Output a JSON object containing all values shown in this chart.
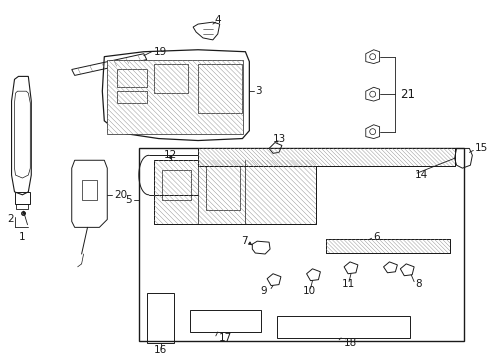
{
  "bg_color": "#ffffff",
  "line_color": "#1a1a1a",
  "fig_width": 4.89,
  "fig_height": 3.6,
  "dpi": 100,
  "fs": 7.5
}
